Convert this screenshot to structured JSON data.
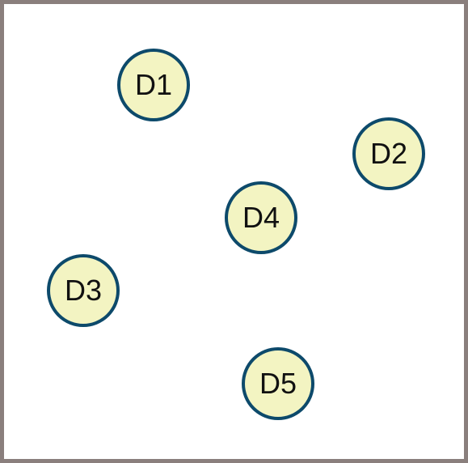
{
  "diagram": {
    "nodes": [
      {
        "id": "D1",
        "label": "D1"
      },
      {
        "id": "D2",
        "label": "D2"
      },
      {
        "id": "D3",
        "label": "D3"
      },
      {
        "id": "D4",
        "label": "D4"
      },
      {
        "id": "D5",
        "label": "D5"
      }
    ]
  },
  "colors": {
    "frame_border": "#8a7f7d",
    "node_fill": "#f3f4c2",
    "node_border": "#0d4a6b",
    "label_text": "#111111"
  }
}
